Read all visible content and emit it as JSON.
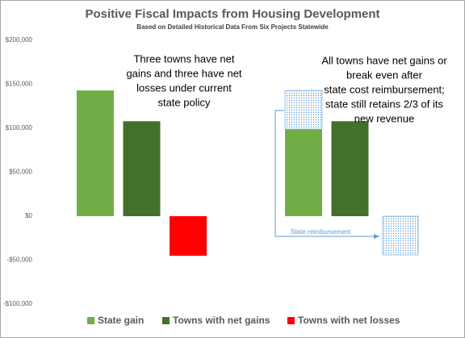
{
  "chart_data": {
    "type": "bar",
    "title": "Positive Fiscal Impacts from Housing Development",
    "subtitle": "Based on Detailed Historical Data From Six Projects Statewide",
    "categories": [
      null,
      null
    ],
    "series": [
      {
        "name": "State gain",
        "color": "#70ad47",
        "values": [
          143000,
          99000
        ]
      },
      {
        "name": "Towns with net gains",
        "color": "#43702b",
        "values": [
          108000,
          108000
        ]
      },
      {
        "name": "Towns with net losses",
        "color": "#ff0000",
        "values": [
          -45000,
          null
        ]
      }
    ],
    "reimbursement": {
      "label": "State reimbursement",
      "color": "#5b9bd5",
      "values": [
        44000,
        -44000
      ]
    },
    "annotations": [
      [
        "Three towns have net",
        "gains and three have net",
        "losses under current",
        "state policy"
      ],
      [
        "All towns have net gains or",
        "break even after",
        "state cost reimbursement;",
        "state still retains 2/3 of its",
        "new revenue"
      ]
    ],
    "ylim": [
      -100000,
      200000
    ],
    "yticks": [
      {
        "value": -100000,
        "label": "-$100,000"
      },
      {
        "value": -50000,
        "label": "-$50,000"
      },
      {
        "value": 0,
        "label": "$0"
      },
      {
        "value": 50000,
        "label": "$50,000"
      },
      {
        "value": 100000,
        "label": "$100,000"
      },
      {
        "value": 150000,
        "label": "$150,000"
      },
      {
        "value": 200000,
        "label": "$200,000"
      }
    ],
    "grid": false
  }
}
